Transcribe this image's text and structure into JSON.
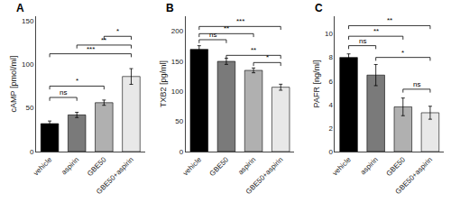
{
  "chart_data": [
    {
      "type": "bar",
      "title": "A",
      "ylabel": "cAMP [pmol/ml]",
      "categories": [
        "vehicle",
        "aspirin",
        "GBE50",
        "GBE50+aspirin"
      ],
      "values": [
        32,
        42,
        56,
        86
      ],
      "errors": [
        3,
        3,
        3,
        9
      ],
      "colors": [
        "#000000",
        "#7a7a7a",
        "#b0b0b0",
        "#e8e8e8"
      ],
      "ylim": [
        0,
        155
      ],
      "yticks": [
        0,
        50,
        100,
        150
      ],
      "grid": false,
      "annotations": [
        {
          "x1": 0,
          "x2": 1,
          "y": 62,
          "text": "ns"
        },
        {
          "x1": 0,
          "x2": 2,
          "y": 75,
          "text": "*"
        },
        {
          "x1": 0,
          "x2": 3,
          "y": 112,
          "text": "***"
        },
        {
          "x1": 1,
          "x2": 3,
          "y": 122,
          "text": "**"
        },
        {
          "x1": 2,
          "x2": 3,
          "y": 132,
          "text": "*"
        }
      ]
    },
    {
      "type": "bar",
      "title": "B",
      "ylabel": "TXB2 [pg/ml]",
      "categories": [
        "vehicle",
        "GBE50",
        "aspirin",
        "GBE50+aspirin"
      ],
      "values": [
        170,
        150,
        135,
        107
      ],
      "errors": [
        6,
        5,
        4,
        5
      ],
      "colors": [
        "#000000",
        "#7a7a7a",
        "#b0b0b0",
        "#e8e8e8"
      ],
      "ylim": [
        0,
        225
      ],
      "yticks": [
        0,
        50,
        100,
        150,
        200
      ],
      "grid": false,
      "annotations": [
        {
          "x1": 0,
          "x2": 1,
          "y": 186,
          "text": "ns"
        },
        {
          "x1": 0,
          "x2": 2,
          "y": 196,
          "text": "**"
        },
        {
          "x1": 0,
          "x2": 3,
          "y": 208,
          "text": "***"
        },
        {
          "x1": 2,
          "x2": 3,
          "y": 148,
          "text": "*"
        },
        {
          "x1": 1,
          "x2": 3,
          "y": 160,
          "text": "**"
        }
      ]
    },
    {
      "type": "bar",
      "title": "C",
      "ylabel": "PAFR [ng/ml]",
      "categories": [
        "vehicle",
        "aspirin",
        "GBE50",
        "GBE50+aspirin"
      ],
      "values": [
        8.0,
        6.5,
        3.8,
        3.3
      ],
      "errors": [
        0.3,
        0.9,
        0.75,
        0.55
      ],
      "colors": [
        "#000000",
        "#7a7a7a",
        "#b0b0b0",
        "#e8e8e8"
      ],
      "ylim": [
        0,
        11.5
      ],
      "yticks": [
        0,
        2,
        4,
        6,
        8,
        10
      ],
      "grid": false,
      "annotations": [
        {
          "x1": 0,
          "x2": 1,
          "y": 9.0,
          "text": "ns"
        },
        {
          "x1": 0,
          "x2": 2,
          "y": 9.8,
          "text": "**"
        },
        {
          "x1": 0,
          "x2": 3,
          "y": 10.7,
          "text": "**"
        },
        {
          "x1": 1,
          "x2": 3,
          "y": 8.0,
          "text": "*"
        },
        {
          "x1": 2,
          "x2": 3,
          "y": 5.3,
          "text": "ns"
        }
      ]
    }
  ]
}
